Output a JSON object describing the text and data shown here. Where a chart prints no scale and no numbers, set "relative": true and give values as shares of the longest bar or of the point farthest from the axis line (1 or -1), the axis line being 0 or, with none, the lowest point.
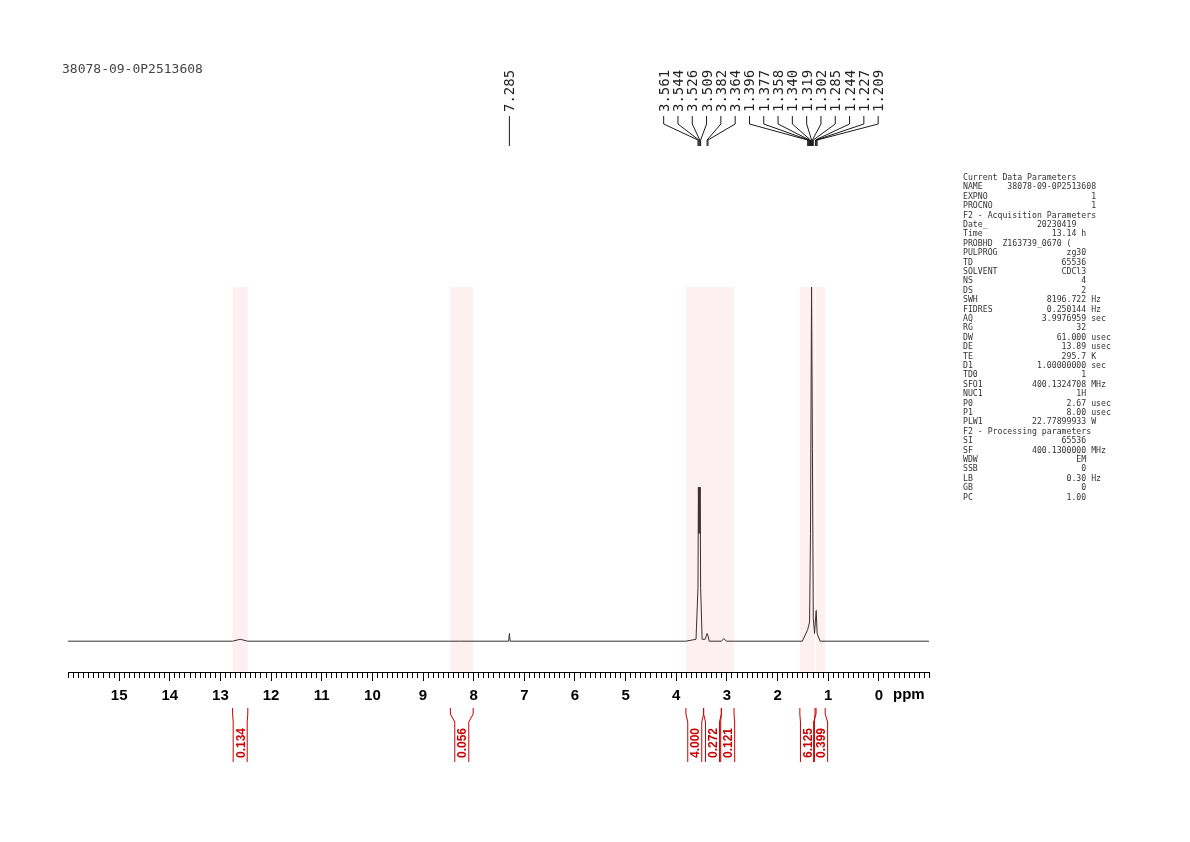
{
  "chart_data": [
    {
      "type": "line",
      "title": "38078-09-0P2513608",
      "xlabel": "ppm",
      "relative": true,
      "tick_labels": "x",
      "grid": false,
      "marker": "none",
      "line_style": "solid",
      "xlim": [
        16,
        -1
      ],
      "xticks": [
        {
          "value": 16,
          "label": null
        },
        {
          "value": 15.9,
          "label": null
        },
        {
          "value": 15.8,
          "label": null
        },
        {
          "value": 15.7,
          "label": null
        },
        {
          "value": 15.6,
          "label": null
        },
        {
          "value": 15.5,
          "label": null
        },
        {
          "value": 15.4,
          "label": null
        },
        {
          "value": 15.3,
          "label": null
        },
        {
          "value": 15.2,
          "label": null
        },
        {
          "value": 15.1,
          "label": null
        },
        15,
        {
          "value": 14.9,
          "label": null
        },
        {
          "value": 14.8,
          "label": null
        },
        {
          "value": 14.7,
          "label": null
        },
        {
          "value": 14.6,
          "label": null
        },
        {
          "value": 14.5,
          "label": null
        },
        {
          "value": 14.4,
          "label": null
        },
        {
          "value": 14.3,
          "label": null
        },
        {
          "value": 14.2,
          "label": null
        },
        {
          "value": 14.1,
          "label": null
        },
        14,
        {
          "value": 13.9,
          "label": null
        },
        {
          "value": 13.8,
          "label": null
        },
        {
          "value": 13.7,
          "label": null
        },
        {
          "value": 13.6,
          "label": null
        },
        {
          "value": 13.5,
          "label": null
        },
        {
          "value": 13.4,
          "label": null
        },
        {
          "value": 13.3,
          "label": null
        },
        {
          "value": 13.2,
          "label": null
        },
        {
          "value": 13.1,
          "label": null
        },
        13,
        {
          "value": 12.9,
          "label": null
        },
        {
          "value": 12.8,
          "label": null
        },
        {
          "value": 12.7,
          "label": null
        },
        {
          "value": 12.6,
          "label": null
        },
        {
          "value": 12.5,
          "label": null
        },
        {
          "value": 12.4,
          "label": null
        },
        {
          "value": 12.3,
          "label": null
        },
        {
          "value": 12.2,
          "label": null
        },
        {
          "value": 12.1,
          "label": null
        },
        12,
        {
          "value": 11.9,
          "label": null
        },
        {
          "value": 11.8,
          "label": null
        },
        {
          "value": 11.7,
          "label": null
        },
        {
          "value": 11.6,
          "label": null
        },
        {
          "value": 11.5,
          "label": null
        },
        {
          "value": 11.4,
          "label": null
        },
        {
          "value": 11.3,
          "label": null
        },
        {
          "value": 11.2,
          "label": null
        },
        {
          "value": 11.1,
          "label": null
        },
        11,
        {
          "value": 10.9,
          "label": null
        },
        {
          "value": 10.8,
          "label": null
        },
        {
          "value": 10.7,
          "label": null
        },
        {
          "value": 10.6,
          "label": null
        },
        {
          "value": 10.5,
          "label": null
        },
        {
          "value": 10.4,
          "label": null
        },
        {
          "value": 10.3,
          "label": null
        },
        {
          "value": 10.2,
          "label": null
        },
        {
          "value": 10.1,
          "label": null
        },
        10,
        {
          "value": 9.9,
          "label": null
        },
        {
          "value": 9.8,
          "label": null
        },
        {
          "value": 9.7,
          "label": null
        },
        {
          "value": 9.6,
          "label": null
        },
        {
          "value": 9.5,
          "label": null
        },
        {
          "value": 9.4,
          "label": null
        },
        {
          "value": 9.3,
          "label": null
        },
        {
          "value": 9.2,
          "label": null
        },
        {
          "value": 9.1,
          "label": null
        },
        9,
        {
          "value": 8.9,
          "label": null
        },
        {
          "value": 8.8,
          "label": null
        },
        {
          "value": 8.7,
          "label": null
        },
        {
          "value": 8.6,
          "label": null
        },
        {
          "value": 8.5,
          "label": null
        },
        {
          "value": 8.4,
          "label": null
        },
        {
          "value": 8.3,
          "label": null
        },
        {
          "value": 8.2,
          "label": null
        },
        {
          "value": 8.1,
          "label": null
        },
        8,
        {
          "value": 7.9,
          "label": null
        },
        {
          "value": 7.8,
          "label": null
        },
        {
          "value": 7.7,
          "label": null
        },
        {
          "value": 7.6,
          "label": null
        },
        {
          "value": 7.5,
          "label": null
        },
        {
          "value": 7.4,
          "label": null
        },
        {
          "value": 7.3,
          "label": null
        },
        {
          "value": 7.2,
          "label": null
        },
        {
          "value": 7.1,
          "label": null
        },
        7,
        {
          "value": 6.9,
          "label": null
        },
        {
          "value": 6.8,
          "label": null
        },
        {
          "value": 6.7,
          "label": null
        },
        {
          "value": 6.6,
          "label": null
        },
        {
          "value": 6.5,
          "label": null
        },
        {
          "value": 6.4,
          "label": null
        },
        {
          "value": 6.3,
          "label": null
        },
        {
          "value": 6.2,
          "label": null
        },
        {
          "value": 6.1,
          "label": null
        },
        6,
        {
          "value": 5.9,
          "label": null
        },
        {
          "value": 5.8,
          "label": null
        },
        {
          "value": 5.7,
          "label": null
        },
        {
          "value": 5.6,
          "label": null
        },
        {
          "value": 5.5,
          "label": null
        },
        {
          "value": 5.4,
          "label": null
        },
        {
          "value": 5.3,
          "label": null
        },
        {
          "value": 5.2,
          "label": null
        },
        {
          "value": 5.1,
          "label": null
        },
        5,
        {
          "value": 4.9,
          "label": null
        },
        {
          "value": 4.8,
          "label": null
        },
        {
          "value": 4.7,
          "label": null
        },
        {
          "value": 4.6,
          "label": null
        },
        {
          "value": 4.5,
          "label": null
        },
        {
          "value": 4.4,
          "label": null
        },
        {
          "value": 4.3,
          "label": null
        },
        {
          "value": 4.2,
          "label": null
        },
        {
          "value": 4.1,
          "label": null
        },
        4,
        {
          "value": 3.9,
          "label": null
        },
        {
          "value": 3.8,
          "label": null
        },
        {
          "value": 3.7,
          "label": null
        },
        {
          "value": 3.6,
          "label": null
        },
        {
          "value": 3.5,
          "label": null
        },
        {
          "value": 3.4,
          "label": null
        },
        {
          "value": 3.3,
          "label": null
        },
        {
          "value": 3.2,
          "label": null
        },
        {
          "value": 3.1,
          "label": null
        },
        3,
        {
          "value": 2.9,
          "label": null
        },
        {
          "value": 2.8,
          "label": null
        },
        {
          "value": 2.7,
          "label": null
        },
        {
          "value": 2.6,
          "label": null
        },
        {
          "value": 2.5,
          "label": null
        },
        {
          "value": 2.4,
          "label": null
        },
        {
          "value": 2.3,
          "label": null
        },
        {
          "value": 2.2,
          "label": null
        },
        {
          "value": 2.1,
          "label": null
        },
        2,
        {
          "value": 1.9,
          "label": null
        },
        {
          "value": 1.8,
          "label": null
        },
        {
          "value": 1.7,
          "label": null
        },
        {
          "value": 1.6,
          "label": null
        },
        {
          "value": 1.5,
          "label": null
        },
        {
          "value": 1.4,
          "label": null
        },
        {
          "value": 1.3,
          "label": null
        },
        {
          "value": 1.2,
          "label": null
        },
        {
          "value": 1.1,
          "label": null
        },
        1,
        {
          "value": 0.9,
          "label": null
        },
        {
          "value": 0.8,
          "label": null
        },
        {
          "value": 0.7,
          "label": null
        },
        {
          "value": 0.6,
          "label": null
        },
        {
          "value": 0.5,
          "label": null
        },
        {
          "value": 0.4,
          "label": null
        },
        {
          "value": 0.3,
          "label": null
        },
        {
          "value": 0.2,
          "label": null
        },
        {
          "value": 0.1,
          "label": null
        },
        0,
        {
          "value": -0.1,
          "label": null
        },
        {
          "value": -0.2,
          "label": null
        },
        {
          "value": -0.3,
          "label": null
        },
        {
          "value": -0.4,
          "label": null
        },
        {
          "value": -0.5,
          "label": null
        },
        {
          "value": -0.6,
          "label": null
        },
        {
          "value": -0.7,
          "label": null
        },
        {
          "value": -0.8,
          "label": null
        },
        {
          "value": -0.9,
          "label": null
        },
        {
          "value": -1,
          "label": null
        }
      ],
      "series": [
        {
          "color": "#333333",
          "x": [
            16,
            12.75,
            12.6,
            12.45,
            8.3,
            8.25,
            8.2,
            7.3,
            7.285,
            7.27,
            3.8,
            3.6,
            3.561,
            3.553,
            3.544,
            3.535,
            3.526,
            3.518,
            3.509,
            3.48,
            3.42,
            3.382,
            3.364,
            3.34,
            3.1,
            3.05,
            3.0,
            1.5,
            1.396,
            1.377,
            1.358,
            1.34,
            1.319,
            1.302,
            1.285,
            1.26,
            1.244,
            1.227,
            1.209,
            1.15,
            -1
          ],
          "values": [
            0.08,
            0.08,
            0.085,
            0.08,
            0.08,
            0.08,
            0.08,
            0.08,
            0.1,
            0.08,
            0.08,
            0.085,
            0.22,
            0.48,
            0.36,
            0.48,
            0.36,
            0.48,
            0.22,
            0.085,
            0.085,
            0.1,
            0.094,
            0.08,
            0.08,
            0.087,
            0.08,
            0.08,
            0.11,
            0.12,
            0.13,
            0.36,
            1,
            0.58,
            0.14,
            0.1,
            0.13,
            0.16,
            0.1,
            0.08,
            0.08
          ]
        }
      ],
      "annotations": [
        {
          "text": "7.285",
          "x": 7.285
        },
        {
          "text": "3.561",
          "x": 3.561
        },
        {
          "text": "3.544",
          "x": 3.544
        },
        {
          "text": "3.526",
          "x": 3.526
        },
        {
          "text": "3.509",
          "x": 3.509
        },
        {
          "text": "3.382",
          "x": 3.382
        },
        {
          "text": "3.364",
          "x": 3.364
        },
        {
          "text": "1.396",
          "x": 1.396
        },
        {
          "text": "1.377",
          "x": 1.377
        },
        {
          "text": "1.358",
          "x": 1.358
        },
        {
          "text": "1.340",
          "x": 1.34
        },
        {
          "text": "1.319",
          "x": 1.319
        },
        {
          "text": "1.302",
          "x": 1.302
        },
        {
          "text": "1.285",
          "x": 1.285
        },
        {
          "text": "1.244",
          "x": 1.244
        },
        {
          "text": "1.227",
          "x": 1.227
        },
        {
          "text": "1.209",
          "x": 1.209
        }
      ],
      "bands": [
        {
          "axis": "x",
          "from": 12.75,
          "to": 12.45,
          "label": "0.134",
          "color": "#cc0000"
        },
        {
          "axis": "x",
          "from": 8.45,
          "to": 8.0,
          "label": "0.056",
          "color": "#cc0000"
        },
        {
          "axis": "x",
          "from": 3.8,
          "to": 3.45,
          "label": "4.000",
          "color": "#cc0000"
        },
        {
          "axis": "x",
          "from": 3.45,
          "to": 3.1,
          "label": "0.272",
          "color": "#cc0000"
        },
        {
          "axis": "x",
          "from": 3.1,
          "to": 2.85,
          "label": "0.121",
          "color": "#cc0000"
        },
        {
          "axis": "x",
          "from": 1.55,
          "to": 1.25,
          "label": "6.125",
          "color": "#cc0000"
        },
        {
          "axis": "x",
          "from": 1.23,
          "to": 1.05,
          "label": "0.399",
          "color": "#cc0000"
        }
      ]
    },
    {
      "type": "other",
      "annotations": [
        "Current Data Parameters",
        "NAME     38078-09-0P2513608",
        "EXPNO                     1",
        "PROCNO                    1",
        "F2 - Acquisition Parameters",
        "Date_          20230419",
        "Time              13.14 h",
        "PROBHD  Z163739_0670 (",
        "PULPROG              zg30",
        "TD                  65536",
        "SOLVENT             CDCl3",
        "NS                      4",
        "DS                      2",
        "SWH              8196.722 Hz",
        "FIDRES           0.250144 Hz",
        "AQ              3.9976959 sec",
        "RG                     32",
        "DW                 61.000 usec",
        "DE                  13.89 usec",
        "TE                  295.7 K",
        "D1             1.00000000 sec",
        "TD0                     1",
        "SFO1          400.1324708 MHz",
        "NUC1                   1H",
        "P0                   2.67 usec",
        "P1                   8.00 usec",
        "PLW1          22.77899933 W",
        "F2 - Processing parameters",
        "SI                  65536",
        "SF            400.1300000 MHz",
        "WDW                    EM",
        "SSB                     0",
        "LB                   0.30 Hz",
        "GB                      0",
        "PC                   1.00"
      ]
    }
  ]
}
